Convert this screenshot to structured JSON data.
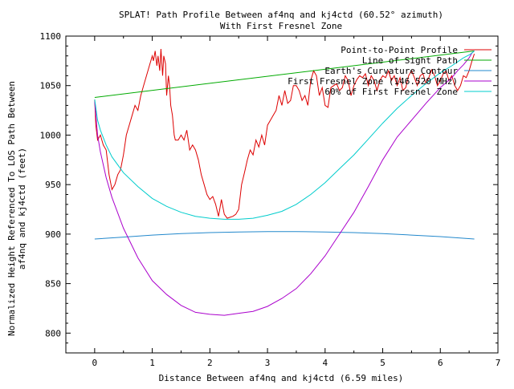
{
  "chart_data": {
    "type": "line",
    "title": [
      "SPLAT! Path Profile Between af4nq and kj4ctd (60.52° azimuth)",
      "With First Fresnel Zone"
    ],
    "xlabel": "Distance Between af4nq and kj4ctd (6.59 miles)",
    "ylabel": [
      "Normalized Height Referenced To LOS Path Between",
      "af4nq and kj4ctd (feet)"
    ],
    "xlim": [
      -0.5,
      7
    ],
    "ylim": [
      780,
      1100
    ],
    "xticks": [
      "0",
      "1",
      "2",
      "3",
      "4",
      "5",
      "6",
      "7"
    ],
    "yticks": [
      "800",
      "850",
      "900",
      "950",
      "1000",
      "1050",
      "1100"
    ],
    "legend_position": "top-right",
    "series": [
      {
        "name": "Point-to-Point Profile",
        "color": "#dd0000",
        "x": [
          0,
          0.02,
          0.05,
          0.1,
          0.15,
          0.2,
          0.25,
          0.3,
          0.35,
          0.4,
          0.45,
          0.5,
          0.55,
          0.6,
          0.65,
          0.7,
          0.75,
          0.8,
          0.85,
          0.9,
          0.95,
          1.0,
          1.02,
          1.05,
          1.08,
          1.1,
          1.13,
          1.15,
          1.18,
          1.2,
          1.23,
          1.25,
          1.28,
          1.3,
          1.32,
          1.35,
          1.38,
          1.4,
          1.45,
          1.5,
          1.55,
          1.6,
          1.65,
          1.7,
          1.75,
          1.8,
          1.85,
          1.9,
          1.95,
          2.0,
          2.05,
          2.1,
          2.15,
          2.2,
          2.25,
          2.3,
          2.35,
          2.4,
          2.45,
          2.5,
          2.55,
          2.6,
          2.65,
          2.7,
          2.75,
          2.8,
          2.85,
          2.9,
          2.95,
          3.0,
          3.05,
          3.1,
          3.15,
          3.2,
          3.25,
          3.3,
          3.35,
          3.4,
          3.45,
          3.5,
          3.55,
          3.6,
          3.65,
          3.7,
          3.75,
          3.8,
          3.85,
          3.9,
          3.95,
          4.0,
          4.05,
          4.1,
          4.15,
          4.2,
          4.25,
          4.3,
          4.35,
          4.4,
          4.45,
          4.5,
          4.55,
          4.6,
          4.65,
          4.7,
          4.75,
          4.8,
          4.85,
          4.9,
          4.95,
          5.0,
          5.05,
          5.1,
          5.15,
          5.2,
          5.25,
          5.3,
          5.35,
          5.4,
          5.45,
          5.5,
          5.55,
          5.6,
          5.65,
          5.7,
          5.75,
          5.8,
          5.85,
          5.9,
          5.95,
          6.0,
          6.05,
          6.1,
          6.15,
          6.2,
          6.25,
          6.3,
          6.35,
          6.4,
          6.45,
          6.5,
          6.55,
          6.59
        ],
        "y": [
          1036,
          1010,
          995,
          1000,
          990,
          985,
          960,
          945,
          950,
          960,
          965,
          980,
          1000,
          1010,
          1020,
          1030,
          1025,
          1040,
          1050,
          1060,
          1070,
          1080,
          1075,
          1085,
          1070,
          1080,
          1065,
          1087,
          1060,
          1080,
          1072,
          1040,
          1060,
          1050,
          1030,
          1020,
          1000,
          995,
          995,
          1000,
          995,
          1005,
          985,
          990,
          985,
          975,
          960,
          950,
          940,
          935,
          938,
          930,
          918,
          935,
          920,
          916,
          917,
          918,
          920,
          925,
          950,
          962,
          975,
          985,
          980,
          995,
          988,
          1000,
          990,
          1010,
          1015,
          1020,
          1025,
          1040,
          1030,
          1045,
          1032,
          1035,
          1050,
          1050,
          1045,
          1035,
          1040,
          1030,
          1055,
          1065,
          1060,
          1040,
          1048,
          1030,
          1028,
          1048,
          1050,
          1052,
          1045,
          1048,
          1060,
          1055,
          1040,
          1050,
          1056,
          1060,
          1058,
          1062,
          1050,
          1060,
          1055,
          1045,
          1055,
          1060,
          1058,
          1065,
          1055,
          1060,
          1050,
          1058,
          1045,
          1048,
          1060,
          1065,
          1058,
          1050,
          1060,
          1062,
          1052,
          1058,
          1066,
          1060,
          1050,
          1055,
          1062,
          1065,
          1055,
          1060,
          1050,
          1045,
          1050,
          1060,
          1058,
          1065,
          1075,
          1082
        ]
      },
      {
        "name": "Line of Sight Path",
        "color": "#00aa00",
        "x": [
          0,
          6.59
        ],
        "y": [
          1038,
          1085
        ]
      },
      {
        "name": "Earth's Curvature Contour",
        "color": "#2288cc",
        "x": [
          0,
          0.5,
          1,
          1.5,
          2,
          2.5,
          3,
          3.5,
          4,
          4.5,
          5,
          5.5,
          6,
          6.59
        ],
        "y": [
          895,
          897,
          899,
          900.5,
          901.5,
          902.2,
          902.6,
          902.6,
          902.2,
          901.5,
          900.5,
          899,
          897.5,
          895
        ]
      },
      {
        "name": "First Fresnel Zone (146.520 MHz)",
        "color": "#aa00cc",
        "x": [
          0,
          0.05,
          0.1,
          0.2,
          0.3,
          0.5,
          0.75,
          1.0,
          1.25,
          1.5,
          1.75,
          2.0,
          2.25,
          2.5,
          2.75,
          3.0,
          3.25,
          3.5,
          3.75,
          4.0,
          4.25,
          4.5,
          4.75,
          5.0,
          5.25,
          5.5,
          5.75,
          6.0,
          6.2,
          6.3,
          6.4,
          6.5,
          6.55,
          6.59
        ],
        "y": [
          1034,
          1000,
          983,
          957,
          937,
          906,
          876,
          853,
          839,
          828,
          821,
          819,
          818,
          820,
          822,
          827,
          835,
          845,
          860,
          878,
          900,
          922,
          948,
          975,
          998,
          1015,
          1032,
          1048,
          1058,
          1065,
          1071,
          1078,
          1083,
          1085
        ]
      },
      {
        "name": "60% of First Fresnel Zone",
        "color": "#00cccc",
        "x": [
          0,
          0.05,
          0.1,
          0.2,
          0.3,
          0.5,
          0.75,
          1.0,
          1.25,
          1.5,
          1.75,
          2.0,
          2.25,
          2.5,
          2.75,
          3.0,
          3.25,
          3.5,
          3.75,
          4.0,
          4.25,
          4.5,
          4.75,
          5.0,
          5.25,
          5.5,
          5.75,
          6.0,
          6.2,
          6.3,
          6.4,
          6.5,
          6.55,
          6.59
        ],
        "y": [
          1036,
          1015,
          1005,
          990,
          978,
          962,
          948,
          936,
          928,
          922,
          918,
          916,
          915,
          915,
          916,
          919,
          923,
          930,
          940,
          952,
          966,
          980,
          996,
          1012,
          1027,
          1040,
          1052,
          1063,
          1070,
          1074,
          1078,
          1081,
          1083,
          1085
        ]
      }
    ]
  }
}
